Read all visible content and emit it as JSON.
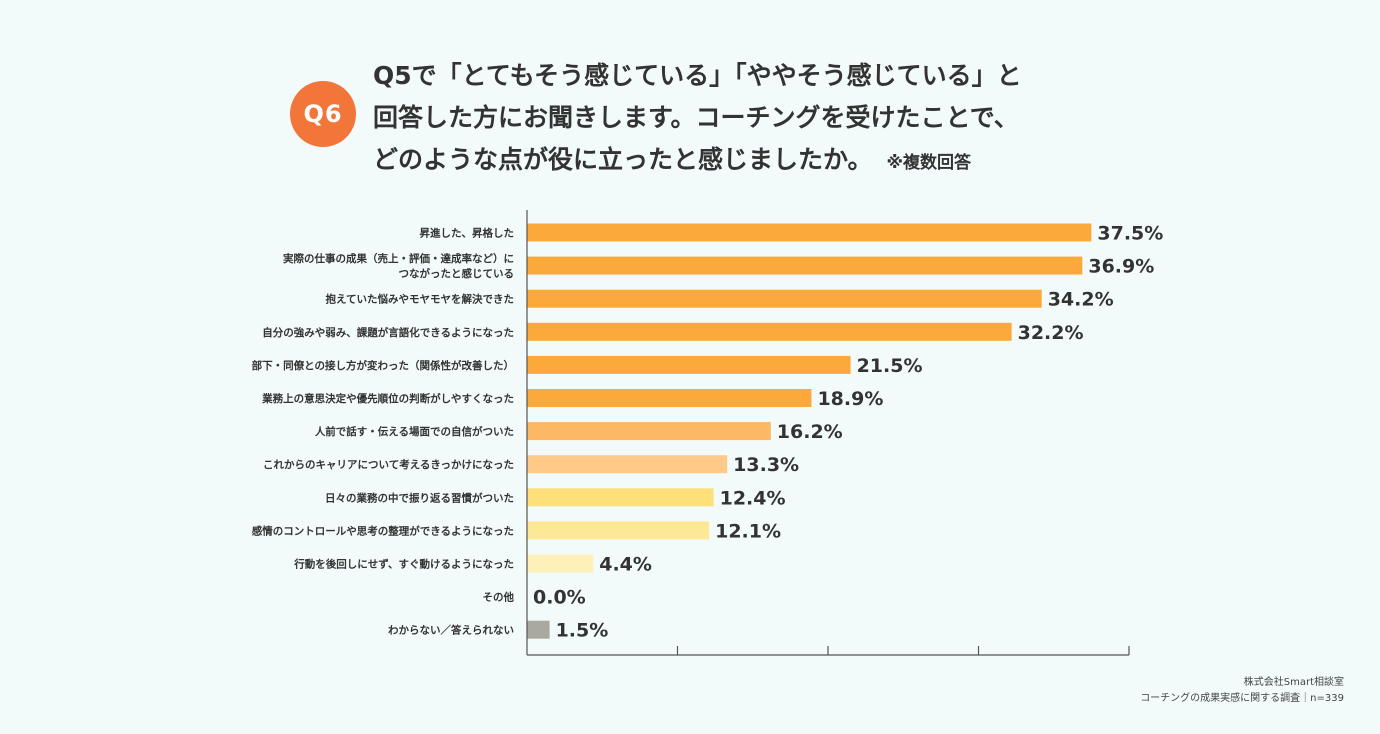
{
  "header": {
    "badge": "Q6",
    "title_lines": [
      "Q5で「とてもそう感じている」「ややそう感じている」と",
      "回答した方にお聞きします。コーチングを受けたことで、",
      "どのような点が役に立ったと感じましたか。"
    ],
    "note": "※複数回答"
  },
  "footer": {
    "company": "株式会社Smart相談室",
    "survey": "コーチングの成果実感に関する調査｜n=339"
  },
  "chart_data": {
    "type": "bar",
    "orientation": "horizontal",
    "categories": [
      [
        "昇進した、昇格した"
      ],
      [
        "実際の仕事の成果（売上・評価・達成率など）に",
        "つながったと感じている"
      ],
      [
        "抱えていた悩みやモヤモヤを解決できた"
      ],
      [
        "自分の強みや弱み、課題が言語化できるようになった"
      ],
      [
        "部下・同僚との接し方が変わった（関係性が改善した）"
      ],
      [
        "業務上の意思決定や優先順位の判断がしやすくなった"
      ],
      [
        "人前で話す・伝える場面での自信がついた"
      ],
      [
        "これからのキャリアについて考えるきっかけになった"
      ],
      [
        "日々の業務の中で振り返る習慣がついた"
      ],
      [
        "感情のコントロールや思考の整理ができるようになった"
      ],
      [
        "行動を後回しにせず、すぐ動けるようになった"
      ],
      [
        "その他"
      ],
      [
        "わからない／答えられない"
      ]
    ],
    "values": [
      37.5,
      36.9,
      34.2,
      32.2,
      21.5,
      18.9,
      16.2,
      13.3,
      12.4,
      12.1,
      4.4,
      0.0,
      1.5
    ],
    "value_labels": [
      "37.5%",
      "36.9%",
      "34.2%",
      "32.2%",
      "21.5%",
      "18.9%",
      "16.2%",
      "13.3%",
      "12.4%",
      "12.1%",
      "4.4%",
      "0.0%",
      "1.5%"
    ],
    "colors": [
      "#fba93b",
      "#fba93b",
      "#fba93b",
      "#fba93b",
      "#fba93b",
      "#fba93b",
      "#fbb865",
      "#fdca88",
      "#fde079",
      "#fde895",
      "#fef0b8",
      "#fef0b8",
      "#aaa9a0"
    ],
    "xlim": [
      0,
      40
    ],
    "grid": false
  }
}
